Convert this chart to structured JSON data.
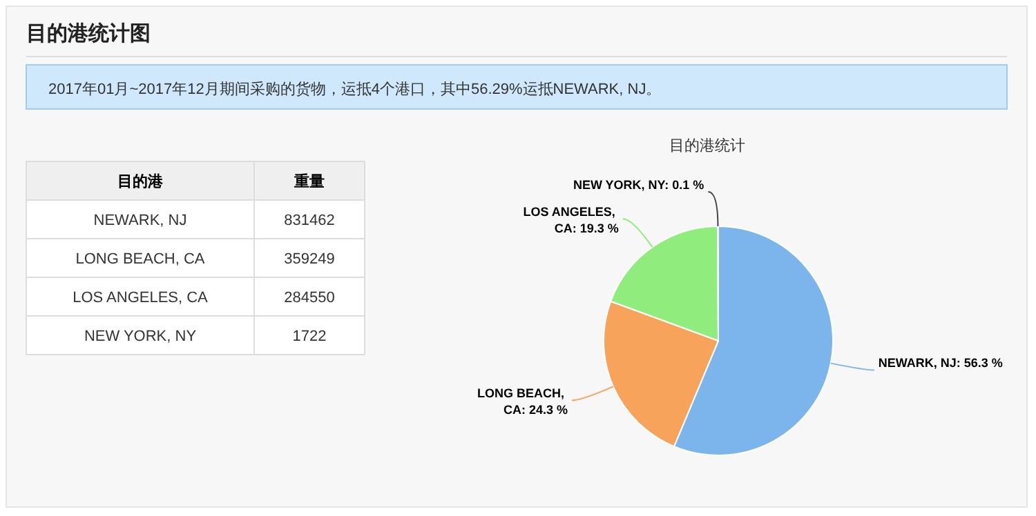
{
  "chart_data": [
    {
      "type": "other",
      "title": "目的港统计图",
      "subtitle": "2017年01月~2017年12月期间采购的货物，运抵4个港口，其中56.29%运抵NEWARK, NJ。",
      "xlabel": "目的港",
      "ylabel": "重量",
      "categories": [
        "NEWARK, NJ",
        "LONG BEACH, CA",
        "LOS ANGELES, CA",
        "NEW YORK, NY"
      ],
      "values": [
        831462,
        359249,
        284550,
        1722
      ],
      "data_labels": true
    },
    {
      "type": "pie",
      "title": "目的港统计",
      "categories": [
        "NEWARK, NJ",
        "LONG BEACH, CA",
        "LOS ANGELES, CA",
        "NEW YORK, NY"
      ],
      "values": [
        56.3,
        24.3,
        19.3,
        0.1
      ],
      "value_labels": [
        "56.3 %",
        "24.3 %",
        "19.3 %",
        "0.1 %"
      ],
      "colors": [
        "#7cb5ec",
        "#f7a35c",
        "#90ed7d",
        "#434348"
      ]
    }
  ]
}
